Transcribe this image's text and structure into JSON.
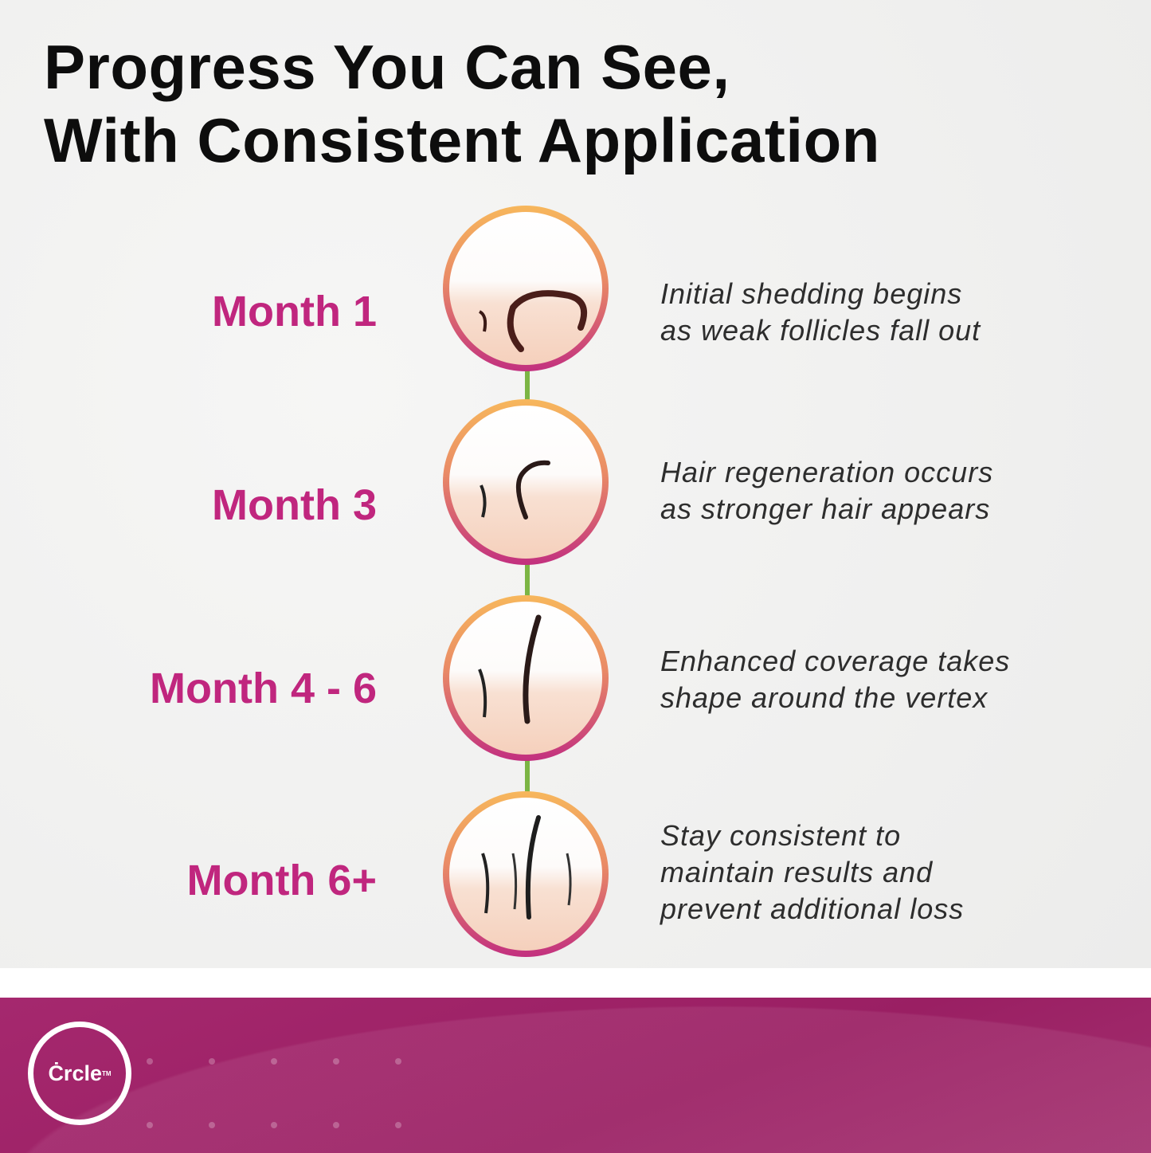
{
  "title": {
    "line1": "Progress You Can See,",
    "line2": "With Consistent Application"
  },
  "stages": [
    {
      "label": "Month 1",
      "description": [
        "Initial shedding begins",
        "as weak follicles fall out"
      ]
    },
    {
      "label": "Month 3",
      "description": [
        "Hair regeneration occurs",
        "as stronger hair appears"
      ]
    },
    {
      "label": "Month 4 - 6",
      "description": [
        "Enhanced coverage takes",
        "shape around the vertex"
      ]
    },
    {
      "label": "Month 6+",
      "description": [
        "Stay consistent to",
        "maintain results and",
        "prevent additional loss"
      ]
    }
  ],
  "brand": {
    "logo": "Ċrcle",
    "trademark": "TM"
  },
  "colors": {
    "accent": "#c0267e",
    "footer": "#9e2266",
    "connector": "#7cb544",
    "ring_top": "#f7b75c",
    "ring_bottom": "#c2307f"
  }
}
